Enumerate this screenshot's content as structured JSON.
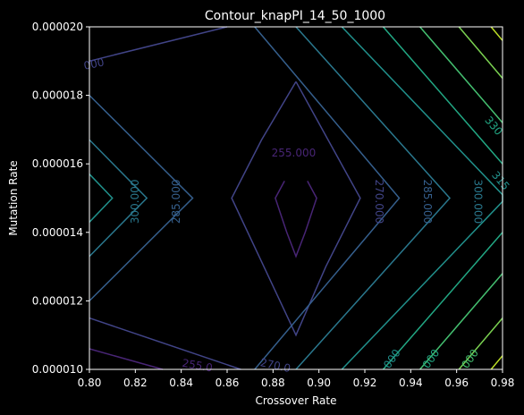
{
  "chart_data": {
    "type": "contour",
    "title": "Contour_knapPI_14_50_1000",
    "xlabel": "Crossover Rate",
    "ylabel": "Mutation Rate",
    "xlim": [
      0.8,
      0.98
    ],
    "ylim": [
      1e-05,
      2e-05
    ],
    "x_ticks": [
      "0.80",
      "0.82",
      "0.84",
      "0.86",
      "0.88",
      "0.90",
      "0.92",
      "0.94",
      "0.96",
      "0.98"
    ],
    "y_ticks": [
      "0.000010",
      "0.000012",
      "0.000014",
      "0.000016",
      "0.000018",
      "0.000020"
    ],
    "background": "#000000",
    "colors": {
      "255": "#482575",
      "270": "#414487",
      "285": "#355f8d",
      "300": "#2a788e",
      "315": "#21918c",
      "330": "#22a884",
      "345": "#44bf70",
      "360": "#7ad151",
      "375": "#bddf26"
    },
    "contours": [
      {
        "level": 255,
        "color": "#482575",
        "polylines": [
          [
            [
              0.885,
              1.55e-05
            ],
            [
              0.881,
              1.5e-05
            ],
            [
              0.886,
              1.4e-05
            ],
            [
              0.89,
              1.33e-05
            ],
            [
              0.894,
              1.4e-05
            ],
            [
              0.899,
              1.5e-05
            ],
            [
              0.895,
              1.55e-05
            ]
          ],
          [
            [
              0.8,
              1.06e-05
            ],
            [
              0.832,
              1e-05
            ]
          ]
        ]
      },
      {
        "level": 270,
        "color": "#414487",
        "polylines": [
          [
            [
              0.89,
              1.84e-05
            ],
            [
              0.875,
              1.67e-05
            ],
            [
              0.862,
              1.5e-05
            ],
            [
              0.876,
              1.3e-05
            ],
            [
              0.89,
              1.1e-05
            ],
            [
              0.903,
              1.3e-05
            ],
            [
              0.918,
              1.5e-05
            ],
            [
              0.904,
              1.67e-05
            ],
            [
              0.89,
              1.84e-05
            ]
          ],
          [
            [
              0.8,
              1.15e-05
            ],
            [
              0.866,
              1e-05
            ]
          ],
          [
            [
              0.8,
              1.9e-05
            ],
            [
              0.86,
              2e-05
            ]
          ]
        ]
      },
      {
        "level": 285,
        "color": "#355f8d",
        "polylines": [
          [
            [
              0.8,
              1.8e-05
            ],
            [
              0.845,
              1.5e-05
            ],
            [
              0.8,
              1.2e-05
            ]
          ],
          [
            [
              0.872,
              2e-05
            ],
            [
              0.935,
              1.5e-05
            ],
            [
              0.872,
              1e-05
            ]
          ]
        ]
      },
      {
        "level": 300,
        "color": "#2a788e",
        "polylines": [
          [
            [
              0.8,
              1.67e-05
            ],
            [
              0.825,
              1.5e-05
            ],
            [
              0.8,
              1.33e-05
            ]
          ],
          [
            [
              0.89,
              2e-05
            ],
            [
              0.957,
              1.5e-05
            ],
            [
              0.89,
              1e-05
            ]
          ]
        ]
      },
      {
        "level": 315,
        "color": "#21918c",
        "polylines": [
          [
            [
              0.8,
              1.57e-05
            ],
            [
              0.81,
              1.5e-05
            ],
            [
              0.8,
              1.43e-05
            ]
          ],
          [
            [
              0.91,
              2e-05
            ],
            [
              0.98,
              1.51e-05
            ],
            [
              0.98,
              1.49e-05
            ],
            [
              0.91,
              1e-05
            ]
          ]
        ]
      },
      {
        "level": 330,
        "color": "#22a884",
        "polylines": [
          [
            [
              0.928,
              2e-05
            ],
            [
              0.98,
              1.6e-05
            ]
          ],
          [
            [
              0.928,
              1e-05
            ],
            [
              0.98,
              1.4e-05
            ]
          ]
        ]
      },
      {
        "level": 345,
        "color": "#44bf70",
        "polylines": [
          [
            [
              0.944,
              2e-05
            ],
            [
              0.98,
              1.72e-05
            ]
          ],
          [
            [
              0.944,
              1e-05
            ],
            [
              0.98,
              1.28e-05
            ]
          ]
        ]
      },
      {
        "level": 360,
        "color": "#7ad151",
        "polylines": [
          [
            [
              0.961,
              2e-05
            ],
            [
              0.98,
              1.85e-05
            ]
          ],
          [
            [
              0.961,
              1e-05
            ],
            [
              0.98,
              1.15e-05
            ]
          ]
        ]
      },
      {
        "level": 375,
        "color": "#bddf26",
        "polylines": [
          [
            [
              0.975,
              2e-05
            ],
            [
              0.98,
              1.96e-05
            ]
          ],
          [
            [
              0.975,
              1e-05
            ],
            [
              0.98,
              1.04e-05
            ]
          ]
        ]
      }
    ],
    "contour_labels": [
      {
        "text": "255.000",
        "color": "#482575",
        "x": 0.889,
        "y": 1.63e-05,
        "angle": 0
      },
      {
        "text": "270.000",
        "color": "#414487",
        "x": 0.926,
        "y": 1.49e-05,
        "angle": 90
      },
      {
        "text": "285.000",
        "color": "#355f8d",
        "x": 0.947,
        "y": 1.49e-05,
        "angle": 90
      },
      {
        "text": "300.000",
        "color": "#2a788e",
        "x": 0.969,
        "y": 1.49e-05,
        "angle": 90
      },
      {
        "text": "300.000",
        "color": "#2a788e",
        "x": 0.82,
        "y": 1.49e-05,
        "angle": -90
      },
      {
        "text": "285.000",
        "color": "#355f8d",
        "x": 0.838,
        "y": 1.49e-05,
        "angle": -90
      },
      {
        "text": "315",
        "color": "#21918c",
        "x": 0.979,
        "y": 1.55e-05,
        "angle": 50
      },
      {
        "text": "330",
        "color": "#22a884",
        "x": 0.976,
        "y": 1.71e-05,
        "angle": 50
      },
      {
        "text": "000",
        "color": "#414487",
        "x": 0.802,
        "y": 1.89e-05,
        "angle": -12
      },
      {
        "text": "255.0",
        "color": "#482575",
        "x": 0.847,
        "y": 1.01e-05,
        "angle": 10
      },
      {
        "text": "270.0",
        "color": "#414487",
        "x": 0.881,
        "y": 1.01e-05,
        "angle": 12
      },
      {
        "text": "000",
        "color": "#21918c",
        "x": 0.932,
        "y": 1.03e-05,
        "angle": -55
      },
      {
        "text": "000",
        "color": "#22a884",
        "x": 0.949,
        "y": 1.03e-05,
        "angle": -55
      },
      {
        "text": "000",
        "color": "#44bf70",
        "x": 0.966,
        "y": 1.03e-05,
        "angle": -55
      }
    ]
  }
}
